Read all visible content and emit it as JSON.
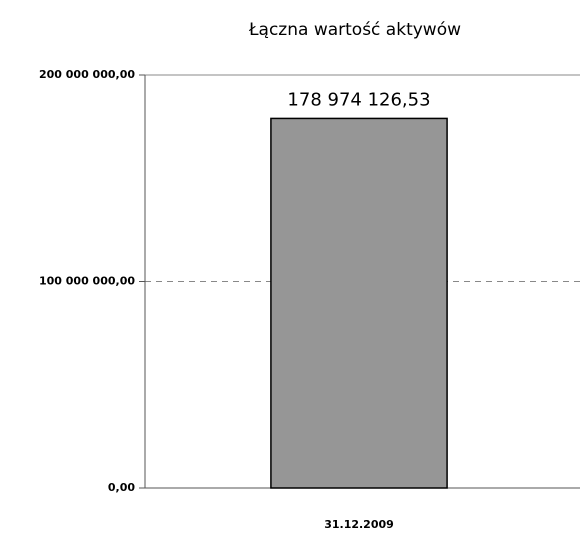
{
  "chart_data": {
    "type": "bar",
    "title": "Łączna wartość aktywów",
    "categories": [
      "31.12.2009"
    ],
    "values": [
      178974126.53
    ],
    "value_labels": [
      "178 974 126,53"
    ],
    "color": "#969696",
    "ylim": [
      0,
      200000000
    ],
    "yticks": [
      {
        "value": 0,
        "label": "0,00"
      },
      {
        "value": 100000000,
        "label": "100 000 000,00"
      },
      {
        "value": 200000000,
        "label": "200 000 000,00"
      }
    ],
    "grid": true
  }
}
